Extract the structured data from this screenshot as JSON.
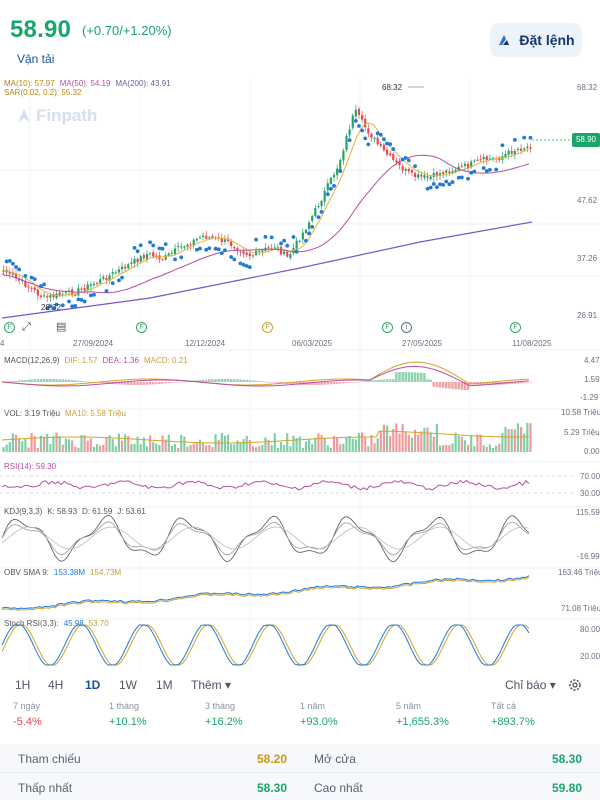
{
  "header": {
    "price": "58.90",
    "change": "(+0.70/+1.20%)",
    "sector": "Vận tải",
    "order_button": "Đặt lệnh",
    "order_icon": "order-icon"
  },
  "watermark": "Finpath",
  "main_chart": {
    "legend": {
      "ma10": "MA(10): 57.97",
      "ma50": "MA(50): 54.19",
      "ma200": "MA(200): 43.91",
      "sar": "SAR(0.02, 0.2): 55.32"
    },
    "y_ticks": [
      "68.32",
      "47.62",
      "37.26",
      "26.91"
    ],
    "current_price_tag": "58.90",
    "peak_label": "68.32",
    "low_label": "28.32",
    "x_labels": [
      "4",
      "27/09/2024",
      "12/12/2024",
      "06/03/2025",
      "27/05/2025",
      "11/08/2025"
    ],
    "colors": {
      "ma10": "#e2b43c",
      "ma50": "#b84ea0",
      "ma200": "#7a54c9",
      "sar": "#1f7ad8",
      "up": "#26a269",
      "down": "#e5484d"
    }
  },
  "macd": {
    "legend": {
      "name": "MACD(12,26,9)",
      "dif": "DIF: 1.57",
      "dea": "DEA: 1.36",
      "macd": "MACD: 0.21"
    },
    "y_ticks": [
      "4.47",
      "1.59",
      "-1.29"
    ]
  },
  "volume": {
    "legend": {
      "vol": "VOL: 3.19 Triệu",
      "ma": "MA10: 5.58 Triệu"
    },
    "y_ticks": [
      "10.58 Triệu",
      "5.29 Triệu",
      "0.00"
    ]
  },
  "rsi": {
    "legend": "RSI(14): 59.30",
    "y_ticks": [
      "70.00",
      "30.00"
    ]
  },
  "kdj": {
    "legend": {
      "name": "KDJ(9,3,3)",
      "k": "K: 58.93",
      "d": "D: 61.59",
      "j": "J: 53.61"
    },
    "y_ticks": [
      "115.59",
      "-16.99"
    ]
  },
  "obv": {
    "legend": {
      "name": "OBV SMA 9:",
      "obv": "153.38M",
      "sma": "154.73M"
    },
    "y_ticks": [
      "163.46 Triệu",
      "71.08 Triệu"
    ]
  },
  "stoch_rsi": {
    "legend": {
      "name": "Stoch RSI(3,3):",
      "k": "45.98",
      "d": "53.70"
    },
    "y_ticks": [
      "80.00",
      "20.00"
    ]
  },
  "timeframes": [
    "1H",
    "4H",
    "1D",
    "1W",
    "1M",
    "Thêm ▾"
  ],
  "active_timeframe": "1D",
  "indicator_button": "Chỉ báo ▾",
  "performance": [
    {
      "label": "7 ngày",
      "value": "-5.4%"
    },
    {
      "label": "1 tháng",
      "value": "+10.1%"
    },
    {
      "label": "3 tháng",
      "value": "+16.2%"
    },
    {
      "label": "1 năm",
      "value": "+93.0%"
    },
    {
      "label": "5 năm",
      "value": "+1,655.3%"
    },
    {
      "label": "Tất cả",
      "value": "+893.7%"
    }
  ],
  "stats": {
    "reference_label": "Tham chiếu",
    "reference_value": "58.20",
    "open_label": "Mở cửa",
    "open_value": "58.30",
    "low_label": "Thấp nhất",
    "low_value": "58.30",
    "high_label": "Cao nhất",
    "high_value": "59.80"
  }
}
